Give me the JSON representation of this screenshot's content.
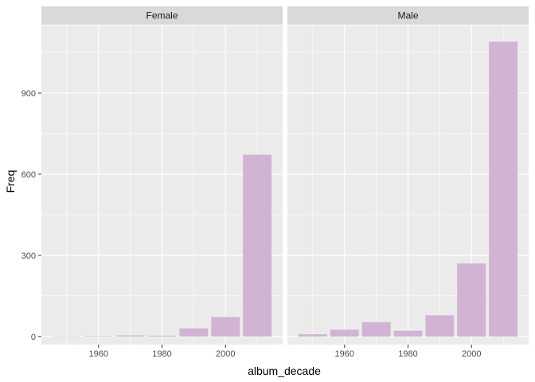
{
  "chart_data": {
    "type": "bar",
    "xlabel": "album_decade",
    "ylabel": "Freq",
    "xlim": [
      1942,
      2018
    ],
    "ylim": [
      -30,
      1150
    ],
    "x_ticks": [
      1960,
      1980,
      2000
    ],
    "y_ticks": [
      0,
      300,
      600,
      900
    ],
    "bar_width": 9,
    "grid": true,
    "legend": "none",
    "panels": [
      {
        "name": "Female",
        "x": [
          1950,
          1960,
          1970,
          1980,
          1990,
          2000,
          2010
        ],
        "values": [
          0,
          1,
          4,
          3,
          30,
          72,
          672
        ]
      },
      {
        "name": "Male",
        "x": [
          1950,
          1960,
          1970,
          1980,
          1990,
          2000,
          2010
        ],
        "values": [
          8,
          25,
          53,
          21,
          78,
          270,
          1090
        ]
      }
    ],
    "colors": {
      "bar": "#d1b3d3",
      "panel_bg": "#ebebeb",
      "strip_bg": "#d9d9d9",
      "grid": "#ffffff",
      "tick": "#333333"
    }
  }
}
